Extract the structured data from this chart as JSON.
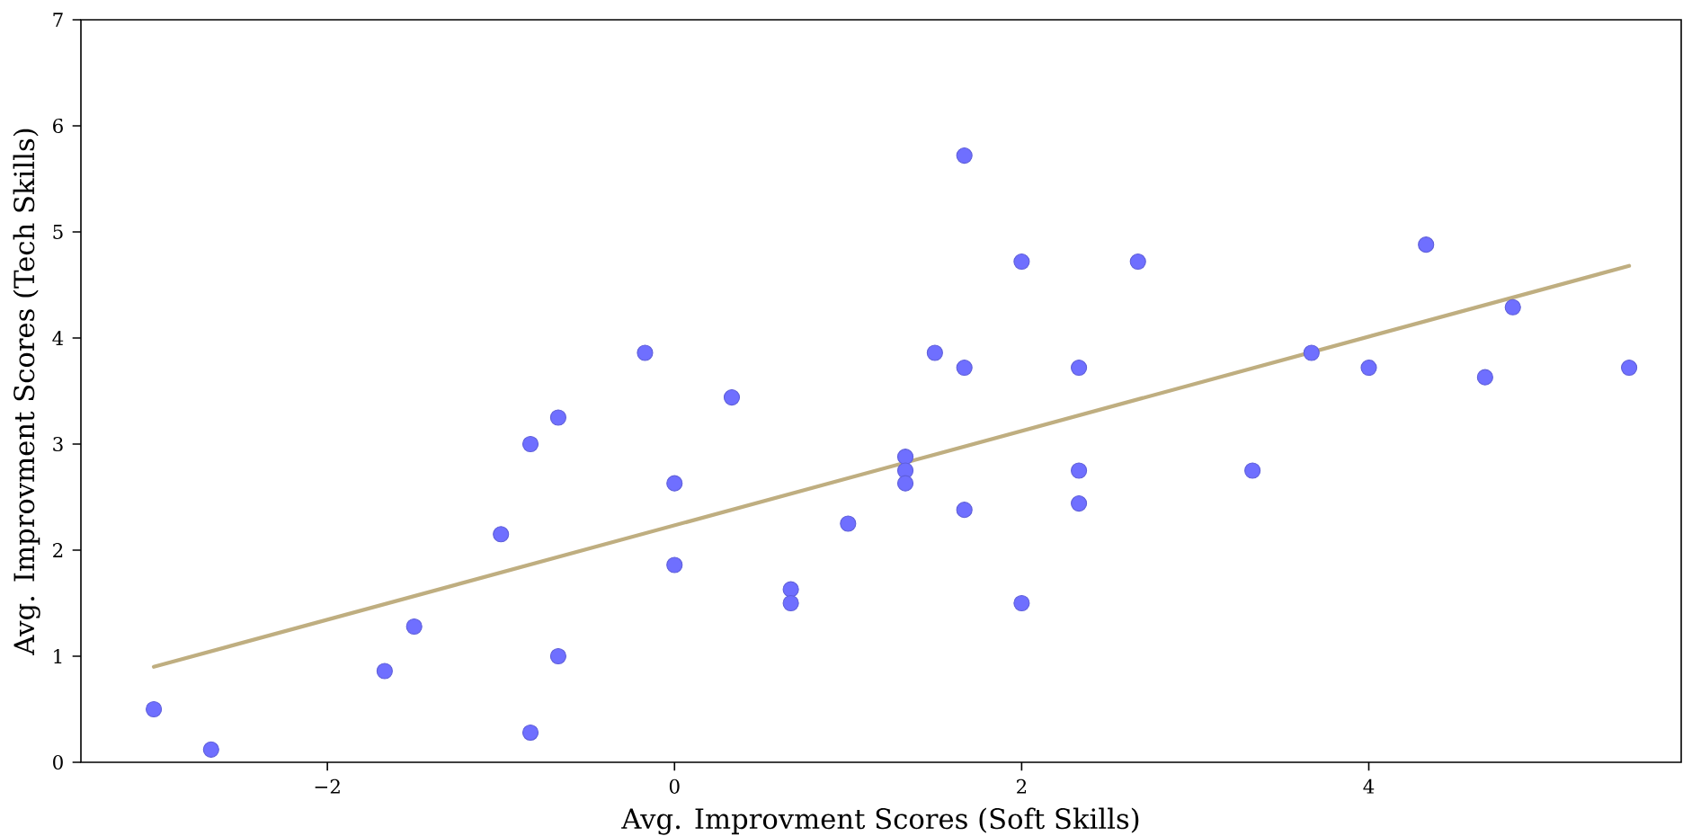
{
  "chart_data": {
    "type": "scatter",
    "xlabel": "Avg. Improvment Scores (Soft Skills)",
    "ylabel": "Avg. Improvment Scores (Tech Skills)",
    "xlim": [
      -3.42,
      5.8
    ],
    "ylim": [
      0,
      7
    ],
    "xticks": [
      {
        "value": -2,
        "label": "−2"
      },
      0,
      2,
      4
    ],
    "yticks": [
      0,
      1,
      2,
      3,
      4,
      5,
      6,
      7
    ],
    "series": [
      {
        "color": "#6f6fff",
        "marker": "circle",
        "x": [
          -3.0,
          -2.67,
          -1.67,
          -1.5,
          -1.0,
          -0.83,
          -0.83,
          -0.67,
          -0.67,
          -0.17,
          0,
          0,
          0.33,
          0.67,
          0.67,
          1.0,
          1.33,
          1.33,
          1.33,
          1.5,
          1.67,
          1.67,
          1.67,
          2.0,
          2.0,
          2.33,
          2.33,
          2.33,
          2.67,
          3.33,
          3.67,
          4.0,
          4.33,
          4.67,
          4.83,
          5.5
        ],
        "values": [
          0.5,
          0.12,
          0.86,
          1.28,
          2.15,
          3.0,
          0.28,
          3.25,
          1.0,
          3.86,
          2.63,
          1.86,
          3.44,
          1.63,
          1.5,
          2.25,
          2.88,
          2.75,
          2.63,
          3.86,
          5.72,
          3.72,
          2.38,
          4.72,
          1.5,
          3.72,
          2.75,
          2.44,
          4.72,
          2.75,
          3.86,
          3.72,
          4.88,
          3.63,
          4.29,
          3.72
        ]
      },
      {
        "type": "line",
        "color": "#bfae80",
        "line_style": "solid",
        "x": [
          -3.0,
          5.5
        ],
        "values": [
          0.9,
          4.68
        ]
      }
    ]
  }
}
